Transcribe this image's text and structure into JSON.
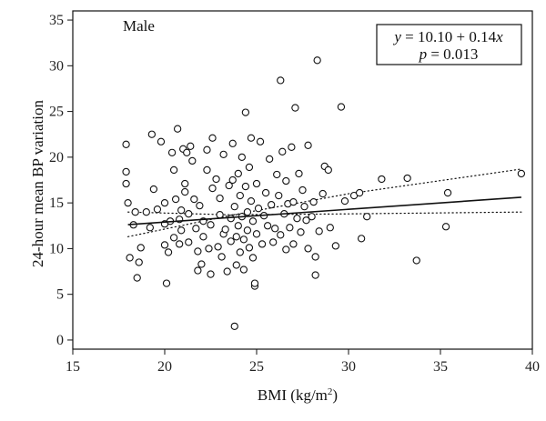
{
  "chart_data": {
    "type": "scatter",
    "panel_label": "Male",
    "xlabel": "BMI (kg/m",
    "xlabel_superscript": "2",
    "xlabel_close": ")",
    "ylabel": "24-hour mean BP variation",
    "xlim": [
      15,
      40
    ],
    "ylim": [
      -1,
      36
    ],
    "xticks": [
      15,
      20,
      25,
      30,
      35,
      40
    ],
    "yticks": [
      0,
      5,
      10,
      15,
      20,
      25,
      30,
      35
    ],
    "annotation": {
      "equation": "y = 10.10 + 0.14x",
      "eq_lhs": "y",
      "eq_mid": " = 10.10 + 0.14",
      "eq_var": "x",
      "p_value": "p = 0.013",
      "p_var": "p",
      "p_rest": " = 0.013"
    },
    "regression": {
      "intercept": 10.1,
      "slope": 0.14,
      "x_range": [
        18.0,
        39.4
      ]
    },
    "confidence_band": {
      "upper": [
        [
          18.0,
          11.3
        ],
        [
          23.5,
          13.6
        ],
        [
          30.0,
          16.0
        ],
        [
          39.4,
          18.7
        ]
      ],
      "lower": [
        [
          18.0,
          14.0
        ],
        [
          23.5,
          13.7
        ],
        [
          30.0,
          13.8
        ],
        [
          39.4,
          14.0
        ]
      ]
    },
    "points": [
      [
        17.9,
        21.4
      ],
      [
        17.9,
        18.4
      ],
      [
        17.9,
        17.1
      ],
      [
        18.0,
        15.0
      ],
      [
        18.1,
        9.0
      ],
      [
        18.3,
        12.6
      ],
      [
        18.4,
        14.0
      ],
      [
        18.5,
        6.8
      ],
      [
        18.6,
        8.5
      ],
      [
        18.7,
        10.1
      ],
      [
        19.0,
        14.0
      ],
      [
        19.2,
        12.3
      ],
      [
        19.3,
        22.5
      ],
      [
        19.4,
        16.5
      ],
      [
        19.6,
        14.3
      ],
      [
        19.8,
        21.7
      ],
      [
        20.0,
        10.4
      ],
      [
        20.0,
        12.7
      ],
      [
        20.0,
        15.0
      ],
      [
        20.1,
        6.2
      ],
      [
        20.2,
        9.6
      ],
      [
        20.3,
        13.0
      ],
      [
        20.4,
        20.5
      ],
      [
        20.5,
        18.6
      ],
      [
        20.5,
        11.2
      ],
      [
        20.6,
        15.4
      ],
      [
        20.7,
        23.1
      ],
      [
        20.8,
        13.2
      ],
      [
        20.8,
        10.5
      ],
      [
        20.9,
        12.0
      ],
      [
        20.9,
        14.2
      ],
      [
        21.0,
        20.9
      ],
      [
        21.1,
        17.1
      ],
      [
        21.1,
        16.2
      ],
      [
        21.2,
        20.5
      ],
      [
        21.3,
        10.7
      ],
      [
        21.3,
        13.8
      ],
      [
        21.4,
        21.2
      ],
      [
        21.5,
        19.6
      ],
      [
        21.6,
        15.4
      ],
      [
        21.7,
        12.2
      ],
      [
        21.8,
        7.6
      ],
      [
        21.8,
        9.7
      ],
      [
        21.9,
        14.7
      ],
      [
        22.0,
        8.3
      ],
      [
        22.1,
        11.3
      ],
      [
        22.1,
        13.0
      ],
      [
        22.3,
        20.8
      ],
      [
        22.3,
        18.6
      ],
      [
        22.4,
        10.0
      ],
      [
        22.5,
        12.6
      ],
      [
        22.5,
        7.2
      ],
      [
        22.6,
        22.1
      ],
      [
        22.6,
        16.6
      ],
      [
        22.8,
        17.6
      ],
      [
        22.9,
        10.2
      ],
      [
        23.0,
        13.7
      ],
      [
        23.0,
        15.5
      ],
      [
        23.1,
        9.1
      ],
      [
        23.2,
        11.6
      ],
      [
        23.2,
        20.3
      ],
      [
        23.3,
        12.1
      ],
      [
        23.4,
        7.5
      ],
      [
        23.5,
        16.9
      ],
      [
        23.6,
        13.3
      ],
      [
        23.6,
        10.8
      ],
      [
        23.7,
        17.5
      ],
      [
        23.7,
        21.5
      ],
      [
        23.8,
        1.5
      ],
      [
        23.8,
        14.6
      ],
      [
        23.9,
        11.3
      ],
      [
        23.9,
        8.2
      ],
      [
        24.0,
        18.2
      ],
      [
        24.0,
        12.5
      ],
      [
        24.1,
        15.8
      ],
      [
        24.1,
        9.6
      ],
      [
        24.2,
        13.5
      ],
      [
        24.2,
        20.0
      ],
      [
        24.3,
        11.0
      ],
      [
        24.3,
        7.7
      ],
      [
        24.4,
        16.8
      ],
      [
        24.4,
        24.9
      ],
      [
        24.5,
        14.0
      ],
      [
        24.5,
        12.0
      ],
      [
        24.6,
        18.9
      ],
      [
        24.6,
        10.1
      ],
      [
        24.7,
        22.1
      ],
      [
        24.7,
        15.2
      ],
      [
        24.8,
        13.0
      ],
      [
        24.8,
        9.0
      ],
      [
        24.9,
        5.9
      ],
      [
        24.9,
        6.2
      ],
      [
        25.0,
        17.1
      ],
      [
        25.0,
        11.6
      ],
      [
        25.1,
        14.4
      ],
      [
        25.2,
        21.7
      ],
      [
        25.3,
        10.5
      ],
      [
        25.4,
        13.6
      ],
      [
        25.5,
        16.1
      ],
      [
        25.6,
        12.5
      ],
      [
        25.7,
        19.8
      ],
      [
        25.8,
        14.8
      ],
      [
        25.9,
        10.7
      ],
      [
        26.0,
        12.2
      ],
      [
        26.1,
        18.1
      ],
      [
        26.2,
        15.8
      ],
      [
        26.3,
        28.4
      ],
      [
        26.3,
        11.5
      ],
      [
        26.4,
        20.6
      ],
      [
        26.5,
        13.8
      ],
      [
        26.6,
        17.4
      ],
      [
        26.6,
        9.9
      ],
      [
        26.7,
        14.9
      ],
      [
        26.8,
        12.3
      ],
      [
        26.9,
        21.1
      ],
      [
        27.0,
        15.1
      ],
      [
        27.0,
        10.5
      ],
      [
        27.1,
        25.4
      ],
      [
        27.2,
        13.3
      ],
      [
        27.3,
        18.2
      ],
      [
        27.4,
        11.8
      ],
      [
        27.5,
        16.4
      ],
      [
        27.6,
        14.6
      ],
      [
        27.7,
        13.1
      ],
      [
        27.8,
        10.0
      ],
      [
        27.8,
        21.3
      ],
      [
        28.0,
        13.5
      ],
      [
        28.1,
        15.1
      ],
      [
        28.2,
        7.1
      ],
      [
        28.2,
        9.1
      ],
      [
        28.3,
        30.6
      ],
      [
        28.4,
        11.9
      ],
      [
        28.6,
        16.0
      ],
      [
        28.7,
        19.0
      ],
      [
        28.9,
        18.6
      ],
      [
        29.0,
        12.3
      ],
      [
        29.3,
        10.3
      ],
      [
        29.6,
        25.5
      ],
      [
        29.8,
        15.2
      ],
      [
        30.3,
        15.8
      ],
      [
        30.6,
        16.1
      ],
      [
        30.7,
        11.1
      ],
      [
        31.0,
        13.5
      ],
      [
        31.8,
        17.6
      ],
      [
        33.2,
        17.7
      ],
      [
        33.7,
        8.7
      ],
      [
        35.3,
        12.4
      ],
      [
        35.4,
        16.1
      ],
      [
        39.4,
        18.2
      ]
    ]
  }
}
